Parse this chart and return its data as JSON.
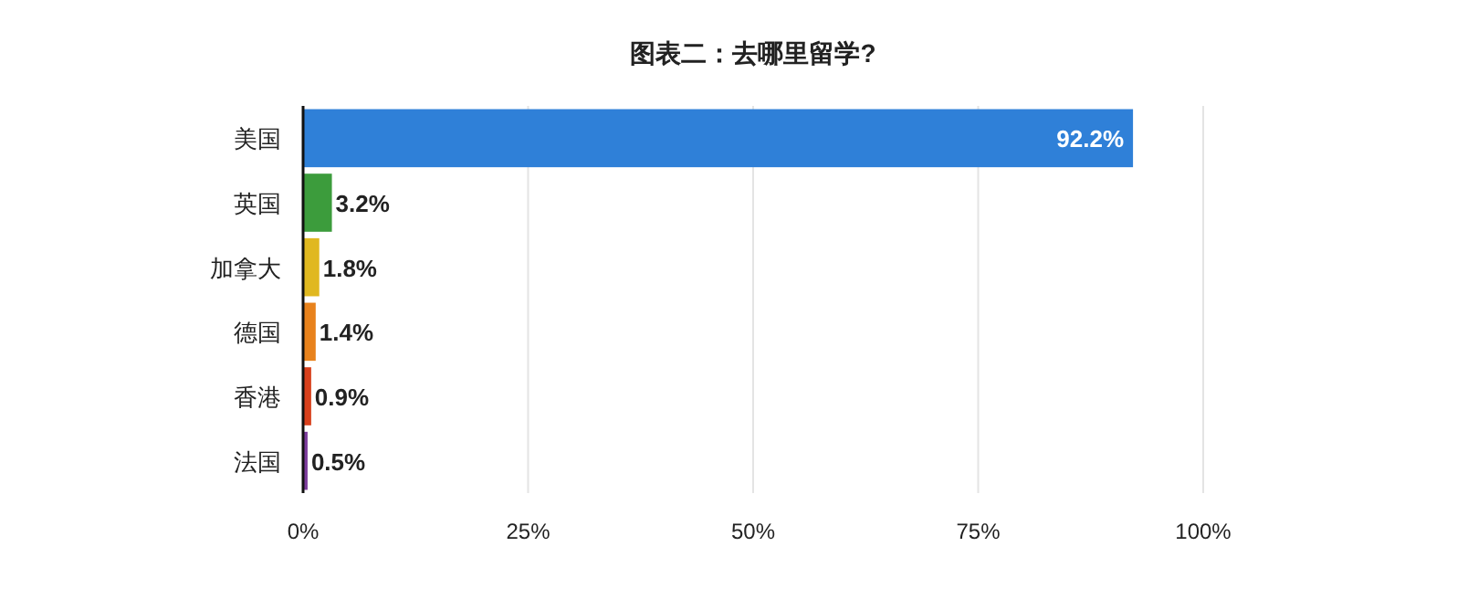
{
  "chart_data": {
    "type": "bar",
    "orientation": "horizontal",
    "title": "图表二：去哪里留学?",
    "categories": [
      "美国",
      "英国",
      "加拿大",
      "德国",
      "香港",
      "法国"
    ],
    "values": [
      92.2,
      3.2,
      1.8,
      1.4,
      0.9,
      0.5
    ],
    "value_labels": [
      "92.2%",
      "3.2%",
      "1.8%",
      "1.4%",
      "0.9%",
      "0.5%"
    ],
    "colors": [
      "#2f80d8",
      "#3c9c3c",
      "#e0b820",
      "#e8821c",
      "#d8401c",
      "#7c3c9c"
    ],
    "xlim": [
      0,
      100
    ],
    "xticks": [
      {
        "value": 0,
        "label": "0%"
      },
      {
        "value": 25,
        "label": "25%"
      },
      {
        "value": 50,
        "label": "50%"
      },
      {
        "value": 75,
        "label": "75%"
      },
      {
        "value": 100,
        "label": "100%"
      }
    ],
    "grid": "x"
  }
}
